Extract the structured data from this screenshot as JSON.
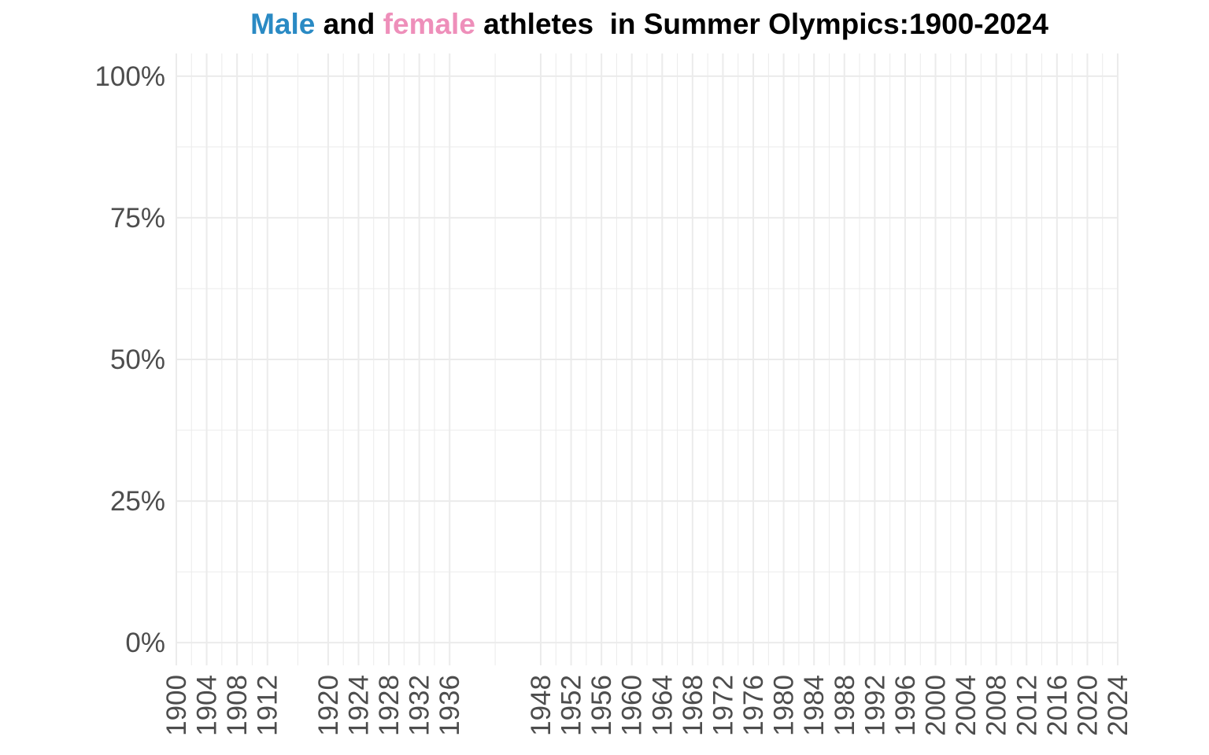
{
  "chart_data": {
    "type": "area",
    "title_parts": [
      {
        "text": "Male",
        "color": "#2a8ac4"
      },
      {
        "text": " and ",
        "color": "#000000"
      },
      {
        "text": "female",
        "color": "#ee8fba"
      },
      {
        "text": " athletes  in Summer Olympics:1900-2024",
        "color": "#000000"
      }
    ],
    "x_ticks": [
      1900,
      1904,
      1908,
      1912,
      1920,
      1924,
      1928,
      1932,
      1936,
      1948,
      1952,
      1956,
      1960,
      1964,
      1968,
      1972,
      1976,
      1980,
      1984,
      1988,
      1992,
      1996,
      2000,
      2004,
      2008,
      2012,
      2016,
      2020,
      2024
    ],
    "y_ticks": [
      "0%",
      "25%",
      "50%",
      "75%",
      "100%"
    ],
    "y_tick_values": [
      0,
      0.25,
      0.5,
      0.75,
      1.0
    ],
    "xlim": [
      1900,
      2024
    ],
    "ylim": [
      -0.04,
      1.04
    ],
    "series": [
      {
        "name": "Male",
        "color": "#2a8ac4",
        "values": []
      },
      {
        "name": "female",
        "color": "#ee8fba",
        "values": []
      }
    ],
    "grid": true,
    "grid_color": "#ebebeb"
  }
}
